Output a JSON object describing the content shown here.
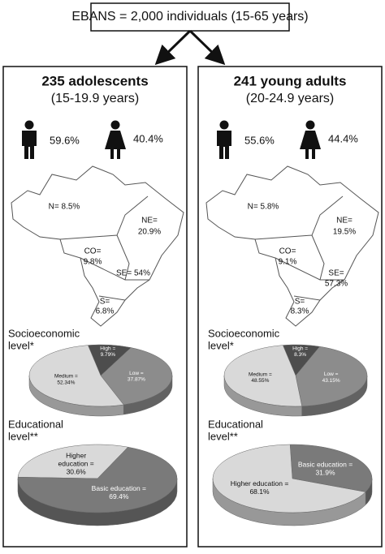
{
  "header": {
    "title": "EBANS = 2,000 individuals (15-65 years)"
  },
  "groups": [
    {
      "title": "235 adolescents",
      "subtitle": "(15-19.9 years)",
      "male": "59.6%",
      "female": "40.4%",
      "regions": [
        {
          "lines": [
            "N= 8.5%"
          ]
        },
        {
          "lines": [
            "NE=",
            "20.9%"
          ]
        },
        {
          "lines": [
            "CO=",
            "9.8%"
          ]
        },
        {
          "lines": [
            "SE= 54%"
          ]
        },
        {
          "lines": [
            "S=",
            "6.8%"
          ]
        }
      ],
      "socioeconomic": {
        "lines": [
          "Socioeconomic",
          "level*"
        ],
        "slices": [
          {
            "value": 9.79,
            "color": "#4d4d4d",
            "label_lines": [
              "High =",
              "9.79%"
            ]
          },
          {
            "value": 37.87,
            "color": "#8c8c8c",
            "label_lines": [
              "Low =",
              "37.87%"
            ]
          },
          {
            "value": 52.34,
            "color": "#d9d9d9",
            "label_lines": [
              "Medium =",
              "52.34%"
            ]
          }
        ]
      },
      "educational": {
        "lines": [
          "Educational",
          "level**"
        ],
        "slices": [
          {
            "value": 30.6,
            "color": "#d9d9d9",
            "label_lines": [
              "Higher",
              "education =",
              "30.6%"
            ]
          },
          {
            "value": 69.4,
            "color": "#7a7a7a",
            "label_lines": [
              "Basic education =",
              "69.4%"
            ]
          }
        ]
      }
    },
    {
      "title": "241 young adults",
      "subtitle": "(20-24.9 years)",
      "male": "55.6%",
      "female": "44.4%",
      "regions": [
        {
          "lines": [
            "N= 5.8%"
          ]
        },
        {
          "lines": [
            "NE=",
            "19.5%"
          ]
        },
        {
          "lines": [
            "CO=",
            "9.1%"
          ]
        },
        {
          "lines": [
            "SE=",
            "57.3%"
          ]
        },
        {
          "lines": [
            "S=",
            "8.3%"
          ]
        }
      ],
      "socioeconomic": {
        "lines": [
          "Socioeconomic",
          "level*"
        ],
        "slices": [
          {
            "value": 8.3,
            "color": "#4d4d4d",
            "label_lines": [
              "High =",
              "8.3%"
            ]
          },
          {
            "value": 43.15,
            "color": "#8c8c8c",
            "label_lines": [
              "Low =",
              "43.15%"
            ]
          },
          {
            "value": 48.55,
            "color": "#d9d9d9",
            "label_lines": [
              "Medium =",
              "48.55%"
            ]
          }
        ]
      },
      "educational": {
        "lines": [
          "Educational",
          "level**"
        ],
        "slices": [
          {
            "value": 31.9,
            "color": "#7a7a7a",
            "label_lines": [
              "Basic education =",
              "31.9%"
            ]
          },
          {
            "value": 68.1,
            "color": "#d9d9d9",
            "label_lines": [
              "Higher education =",
              "68.1%"
            ]
          }
        ]
      }
    }
  ]
}
